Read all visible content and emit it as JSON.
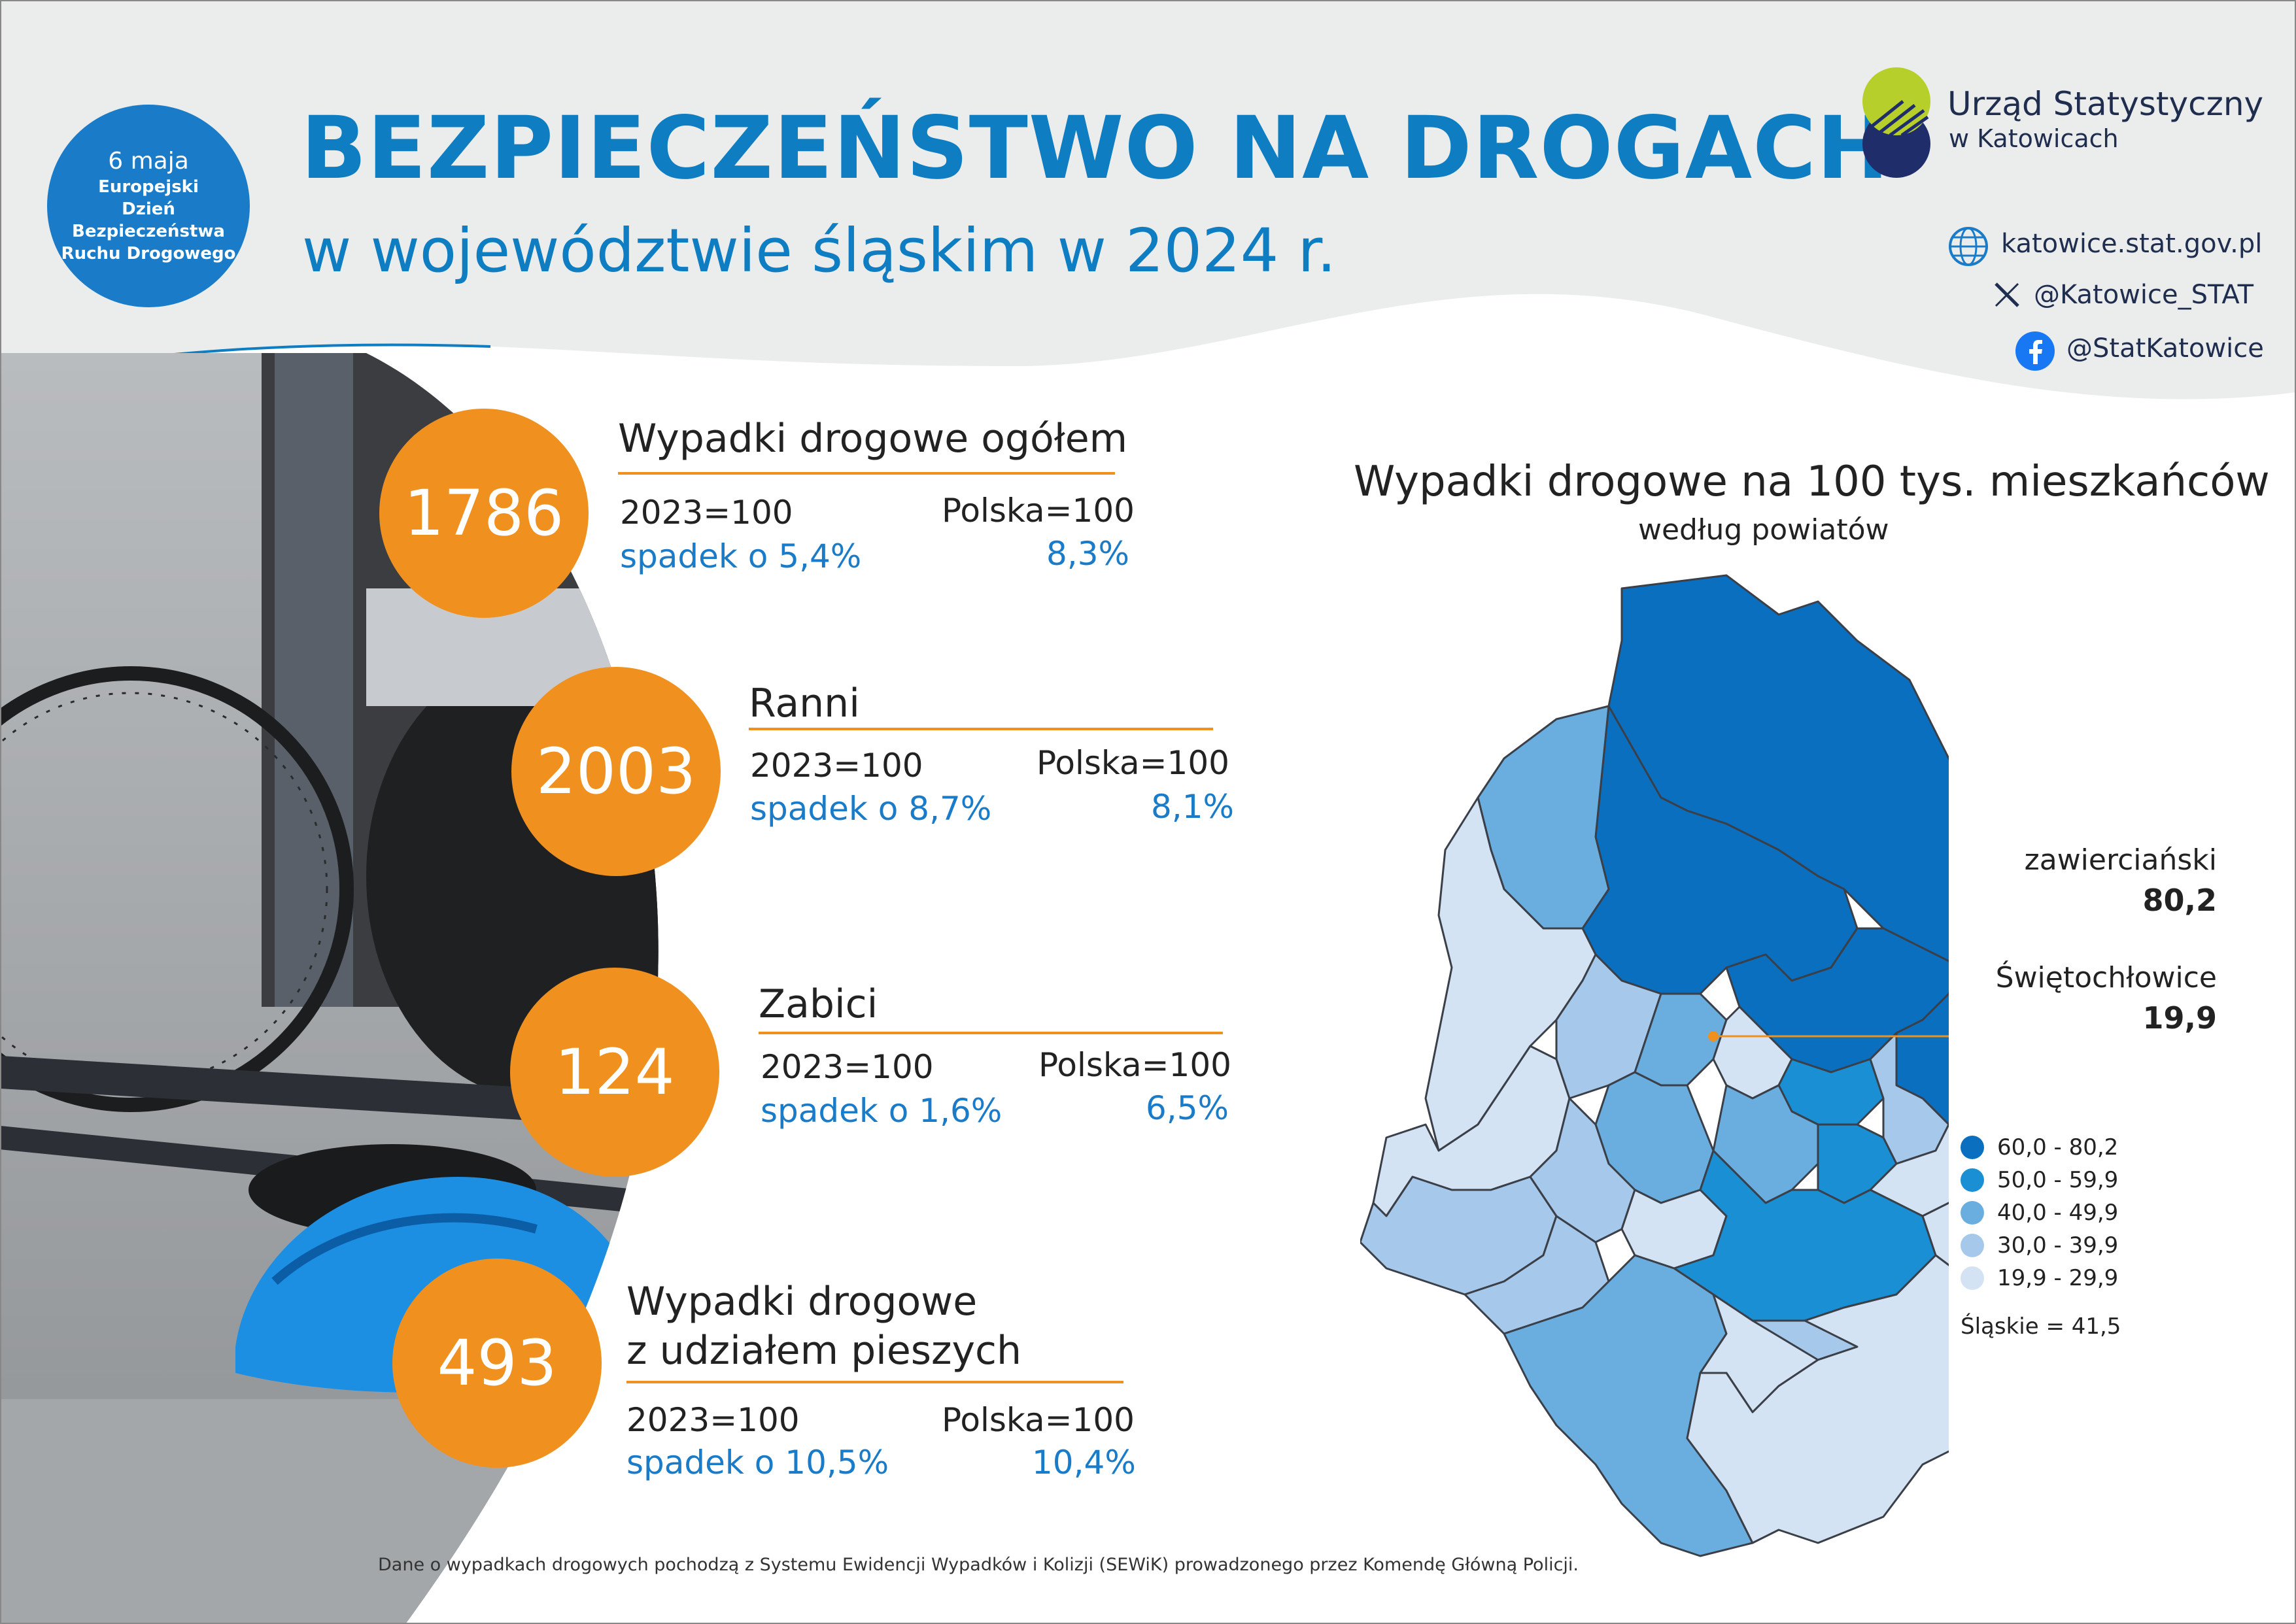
{
  "badge": {
    "date": "6 maja",
    "line1": "Europejski",
    "line2": "Dzień",
    "line3": "Bezpieczeństwa",
    "line4": "Ruchu Drogowego"
  },
  "header": {
    "title": "BEZPIECZEŃSTWO NA DROGACH",
    "subtitle": "w województwie śląskim w 2024 r."
  },
  "logo": {
    "line1": "Urząd Statystyczny",
    "line2": "w Katowicach"
  },
  "social": {
    "web": "katowice.stat.gov.pl",
    "x": "@Katowice_STAT",
    "facebook": "@StatKatowice"
  },
  "stats": [
    {
      "value": "1786",
      "title": "Wypadki drogowe ogółem",
      "base_label": "2023=100",
      "base_value": "spadek o 5,4%",
      "pl_label": "Polska=100",
      "pl_value": "8,3%"
    },
    {
      "value": "2003",
      "title": "Ranni",
      "base_label": "2023=100",
      "base_value": "spadek o 8,7%",
      "pl_label": "Polska=100",
      "pl_value": "8,1%"
    },
    {
      "value": "124",
      "title": "Zabici",
      "base_label": "2023=100",
      "base_value": "spadek o 1,6%",
      "pl_label": "Polska=100",
      "pl_value": "6,5%"
    },
    {
      "value": "493",
      "title_line1": "Wypadki drogowe",
      "title_line2": "z udziałem pieszych",
      "base_label": "2023=100",
      "base_value": "spadek o 10,5%",
      "pl_label": "Polska=100",
      "pl_value": "10,4%"
    }
  ],
  "map": {
    "title": "Wypadki drogowe na 100 tys. mieszkańców",
    "subtitle": "według powiatów",
    "callouts": [
      {
        "name": "zawierciański",
        "value": "80,2"
      },
      {
        "name": "Świętochłowice",
        "value": "19,9"
      }
    ],
    "legend": [
      {
        "label": "60,0 - 80,2",
        "color": "#0a6fbf"
      },
      {
        "label": "50,0 - 59,9",
        "color": "#1a8fd4"
      },
      {
        "label": "40,0 - 49,9",
        "color": "#6aaee0"
      },
      {
        "label": "30,0 - 39,9",
        "color": "#a6c8ea"
      },
      {
        "label": "19,9 - 29,9",
        "color": "#d3e3f4"
      }
    ],
    "total": "Śląskie = 41,5"
  },
  "footnote": "Dane o wypadkach drogowych pochodzą z Systemu Ewidencji Wypadków i Kolizji (SEWiK) prowadzonego przez Komendę Główną Policji.",
  "colors": {
    "brand_blue": "#0e7dc2",
    "accent_orange": "#f0901e",
    "header_gray": "#ebecec"
  },
  "icons": {
    "web": "globe-icon",
    "x": "x-logo-icon",
    "facebook": "facebook-icon"
  }
}
